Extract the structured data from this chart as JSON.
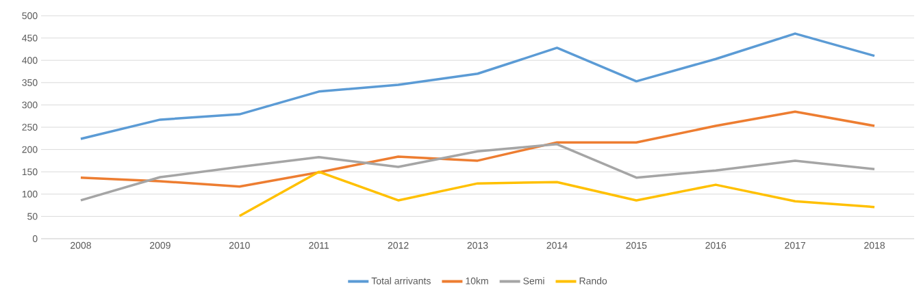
{
  "chart_data": {
    "type": "line",
    "categories": [
      "2008",
      "2009",
      "2010",
      "2011",
      "2012",
      "2013",
      "2014",
      "2015",
      "2016",
      "2017",
      "2018"
    ],
    "series": [
      {
        "name": "Total arrivants",
        "color": "#5b9bd5",
        "values": [
          224,
          267,
          279,
          330,
          345,
          370,
          428,
          353,
          403,
          460,
          410
        ]
      },
      {
        "name": "10km",
        "color": "#ed7d31",
        "values": [
          137,
          129,
          117,
          149,
          184,
          175,
          216,
          216,
          253,
          285,
          253
        ]
      },
      {
        "name": "Semi",
        "color": "#a5a5a5",
        "values": [
          86,
          138,
          161,
          183,
          161,
          196,
          212,
          137,
          153,
          175,
          156
        ]
      },
      {
        "name": "Rando",
        "color": "#ffc000",
        "values": [
          null,
          null,
          51,
          150,
          86,
          124,
          127,
          86,
          121,
          84,
          71
        ]
      }
    ],
    "ylim": [
      0,
      500
    ],
    "yticks": [
      0,
      50,
      100,
      150,
      200,
      250,
      300,
      350,
      400,
      450,
      500
    ],
    "grid": "y",
    "legend": "bottom"
  }
}
